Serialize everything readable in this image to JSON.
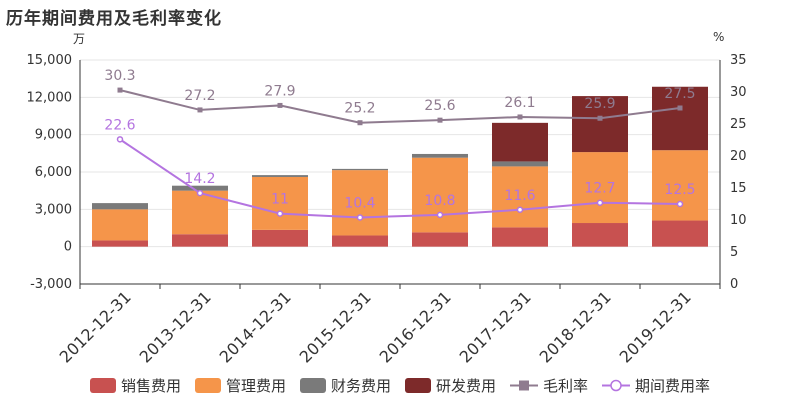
{
  "title": "历年期间费用及毛利率变化",
  "left_unit": "万",
  "right_unit": "%",
  "chart_data": {
    "type": "bar",
    "categories": [
      "2012-12-31",
      "2013-12-31",
      "2014-12-31",
      "2015-12-31",
      "2016-12-31",
      "2017-12-31",
      "2018-12-31",
      "2019-12-31"
    ],
    "stacked": true,
    "series": [
      {
        "name": "销售费用",
        "type": "bar",
        "axis": "left",
        "color": "#c85150",
        "values": [
          500,
          1000,
          1350,
          900,
          1150,
          1550,
          1900,
          2100
        ]
      },
      {
        "name": "管理费用",
        "type": "bar",
        "axis": "left",
        "color": "#f5954a",
        "values": [
          2500,
          3500,
          4250,
          5250,
          6000,
          4900,
          5700,
          5650
        ]
      },
      {
        "name": "财务费用",
        "type": "bar",
        "axis": "left",
        "color": "#7a7a7a",
        "values": [
          500,
          400,
          150,
          100,
          300,
          400,
          0,
          0
        ]
      },
      {
        "name": "研发费用",
        "type": "bar",
        "axis": "left",
        "color": "#7d2a2a",
        "values": [
          0,
          0,
          0,
          0,
          0,
          3100,
          4500,
          5100
        ]
      },
      {
        "name": "毛利率",
        "type": "line",
        "axis": "right",
        "color": "#8f7b8f",
        "marker": "square",
        "values": [
          30.3,
          27.2,
          27.9,
          25.2,
          25.6,
          26.1,
          25.9,
          27.5
        ]
      },
      {
        "name": "期间费用率",
        "type": "line",
        "axis": "right",
        "color": "#b474e0",
        "marker": "circle",
        "values": [
          22.6,
          14.2,
          11,
          10.4,
          10.8,
          11.6,
          12.7,
          12.5
        ]
      }
    ],
    "left_axis": {
      "ylim": [
        -3000,
        15000
      ],
      "ticks": [
        "-3,000",
        "0",
        "3,000",
        "6,000",
        "9,000",
        "12,000",
        "15,000"
      ],
      "tick_values": [
        -3000,
        0,
        3000,
        6000,
        9000,
        12000,
        15000
      ]
    },
    "right_axis": {
      "ylim": [
        0,
        35
      ],
      "ticks": [
        "0",
        "5",
        "10",
        "15",
        "20",
        "25",
        "30",
        "35"
      ],
      "tick_values": [
        0,
        5,
        10,
        15,
        20,
        25,
        30,
        35
      ]
    },
    "legend_position": "bottom",
    "grid": true
  }
}
